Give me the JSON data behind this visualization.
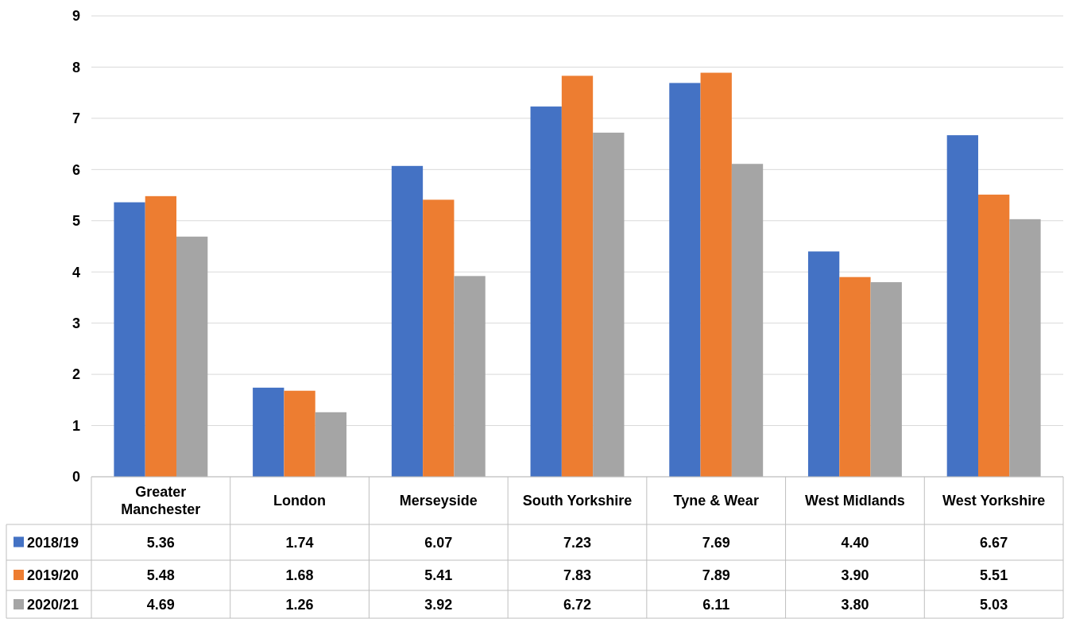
{
  "chart_data": {
    "type": "bar",
    "categories": [
      "Greater Manchester",
      "London",
      "Merseyside",
      "South Yorkshire",
      "Tyne & Wear",
      "West Midlands",
      "West Yorkshire"
    ],
    "series": [
      {
        "name": "2018/19",
        "color": "#4472c4",
        "values": [
          5.36,
          1.74,
          6.07,
          7.23,
          7.69,
          4.4,
          6.67
        ],
        "value_labels": [
          "5.36",
          "1.74",
          "6.07",
          "7.23",
          "7.69",
          "4.40",
          "6.67"
        ]
      },
      {
        "name": "2019/20",
        "color": "#ed7d31",
        "values": [
          5.48,
          1.68,
          5.41,
          7.83,
          7.89,
          3.9,
          5.51
        ],
        "value_labels": [
          "5.48",
          "1.68",
          "5.41",
          "7.83",
          "7.89",
          "3.90",
          "5.51"
        ]
      },
      {
        "name": "2020/21",
        "color": "#a5a5a5",
        "values": [
          4.69,
          1.26,
          3.92,
          6.72,
          6.11,
          3.8,
          5.03
        ],
        "value_labels": [
          "4.69",
          "1.26",
          "3.92",
          "6.72",
          "6.11",
          "3.80",
          "5.03"
        ]
      }
    ],
    "ylim": [
      0,
      9
    ],
    "yticks": [
      0,
      1,
      2,
      3,
      4,
      5,
      6,
      7,
      8,
      9
    ],
    "grid": "y",
    "legend": "bottom"
  }
}
